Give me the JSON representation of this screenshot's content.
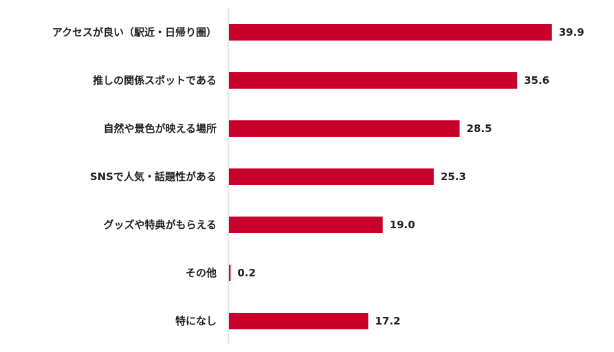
{
  "chart_data": {
    "type": "bar",
    "orientation": "horizontal",
    "categories": [
      "アクセスが良い（駅近・日帰り圏）",
      "推しの関係スポットである",
      "自然や景色が映える場所",
      "SNSで人気・話題性がある",
      "グッズや特典がもらえる",
      "その他",
      "特になし"
    ],
    "values": [
      39.9,
      35.6,
      28.5,
      25.3,
      19.0,
      0.2,
      17.2
    ],
    "value_labels": [
      "39.9",
      "35.6",
      "28.5",
      "25.3",
      "19.0",
      "0.2",
      "17.2"
    ],
    "xlim": [
      0,
      44
    ],
    "grid": false,
    "title": "",
    "xlabel": "",
    "ylabel": "",
    "colors": {
      "bar": "#c8002b",
      "axis": "#c9c9c9",
      "text": "#1f1f1f"
    }
  }
}
